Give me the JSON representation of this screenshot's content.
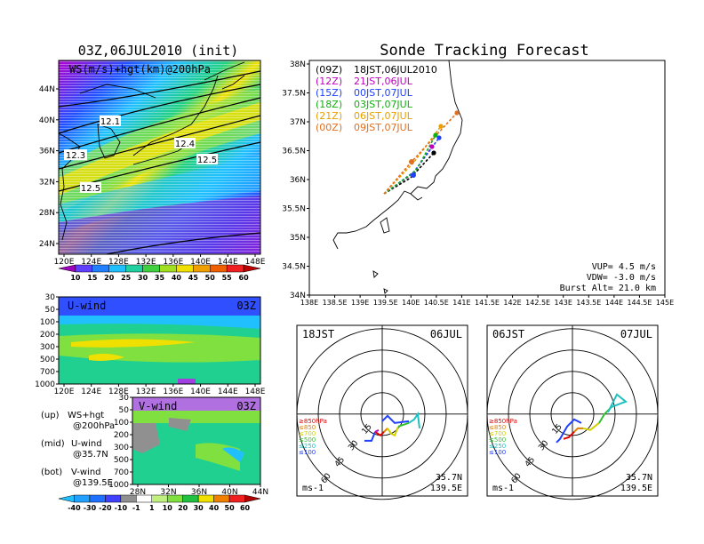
{
  "left_title": "03Z,06JUL2010 (init)",
  "main_title": "Sonde Tracking Forecast",
  "map1": {
    "label": "WS(m/s)+hgt(km)@200hPa",
    "lat_labels": [
      "44N",
      "40N",
      "36N",
      "32N",
      "28N",
      "24N"
    ],
    "lon_labels": [
      "120E",
      "124E",
      "128E",
      "132E",
      "136E",
      "140E",
      "144E",
      "148E"
    ],
    "contour_labels": [
      "12.1",
      "12.3",
      "12.4",
      "12.5",
      "12.5"
    ]
  },
  "colorbar_ws": {
    "ticks": [
      "10",
      "15",
      "20",
      "25",
      "30",
      "35",
      "40",
      "45",
      "50",
      "55",
      "60"
    ]
  },
  "u_panel": {
    "label": "U-wind",
    "time": "03Z",
    "p_labels": [
      "30",
      "50",
      "100",
      "200",
      "300",
      "500",
      "700",
      "1000"
    ],
    "lon_labels": [
      "120E",
      "124E",
      "128E",
      "132E",
      "136E",
      "140E",
      "144E",
      "148E"
    ]
  },
  "v_panel": {
    "label": "V-wind",
    "time": "03Z",
    "p_labels": [
      "30",
      "50",
      "100",
      "200",
      "300",
      "500",
      "700",
      "1000"
    ],
    "lat_labels": [
      "28N",
      "32N",
      "36N",
      "40N",
      "44N"
    ]
  },
  "colorbar_uv": {
    "ticks": [
      "-40",
      "-30",
      "-20",
      "-10",
      "-1",
      "1",
      "10",
      "20",
      "30",
      "40",
      "50",
      "60"
    ]
  },
  "notes": [
    {
      "tag": "(up)",
      "text": "WS+hgt",
      "sub": "@200hPa"
    },
    {
      "tag": "(mid)",
      "text": "U-wind",
      "sub": "@35.7N"
    },
    {
      "tag": "(bot)",
      "text": "V-wind",
      "sub": "@139.5E"
    }
  ],
  "track_map": {
    "lat_labels": [
      "38N",
      "37.5N",
      "37N",
      "36.5N",
      "36N",
      "35.5N",
      "35N",
      "34.5N",
      "34N"
    ],
    "lon_labels": [
      "138E",
      "138.5E",
      "139E",
      "139.5E",
      "140E",
      "140.5E",
      "141E",
      "141.5E",
      "142E",
      "142.5E",
      "143E",
      "143.5E",
      "144E",
      "144.5E",
      "145E"
    ],
    "legend": [
      {
        "z": "(09Z)",
        "text": "18JST,06JUL2010",
        "color": "#000000"
      },
      {
        "z": "(12Z)",
        "text": "21JST,06JUL",
        "color": "#c000c0"
      },
      {
        "z": "(15Z)",
        "text": "00JST,07JUL",
        "color": "#2040ff"
      },
      {
        "z": "(18Z)",
        "text": "03JST,07JUL",
        "color": "#10b010"
      },
      {
        "z": "(21Z)",
        "text": "06JST,07JUL",
        "color": "#e8a000"
      },
      {
        "z": "(00Z)",
        "text": "09JST,07JUL",
        "color": "#e07020"
      }
    ],
    "vup": "VUP= 4.5 m/s",
    "vdw": "VDW= -3.0 m/s",
    "burst": "Burst Alt= 21.0 km"
  },
  "hodo_left": {
    "time": "18JST",
    "date": "06JUL",
    "unit": "ms-1",
    "lat": "35.7N",
    "lon": "139.5E",
    "rings": [
      "15",
      "30",
      "45",
      "60"
    ],
    "levels": [
      {
        "t": "≥850hPa",
        "c": "#e00000"
      },
      {
        "t": "≤850",
        "c": "#e08000"
      },
      {
        "t": "≤700",
        "c": "#d0d000"
      },
      {
        "t": "≤500",
        "c": "#30c030"
      },
      {
        "t": "≤250",
        "c": "#20c0c0"
      },
      {
        "t": "≤100",
        "c": "#2040ff"
      }
    ]
  },
  "hodo_right": {
    "time": "06JST",
    "date": "07JUL",
    "unit": "ms-1",
    "lat": "35.7N",
    "lon": "139.5E",
    "rings": [
      "15",
      "30",
      "45",
      "60"
    ],
    "levels": [
      {
        "t": "≥850hPa",
        "c": "#e00000"
      },
      {
        "t": "≤850",
        "c": "#e08000"
      },
      {
        "t": "≤700",
        "c": "#d0d000"
      },
      {
        "t": "≤500",
        "c": "#30c030"
      },
      {
        "t": "≤250",
        "c": "#20c0c0"
      },
      {
        "t": "≤100",
        "c": "#2040ff"
      }
    ]
  }
}
